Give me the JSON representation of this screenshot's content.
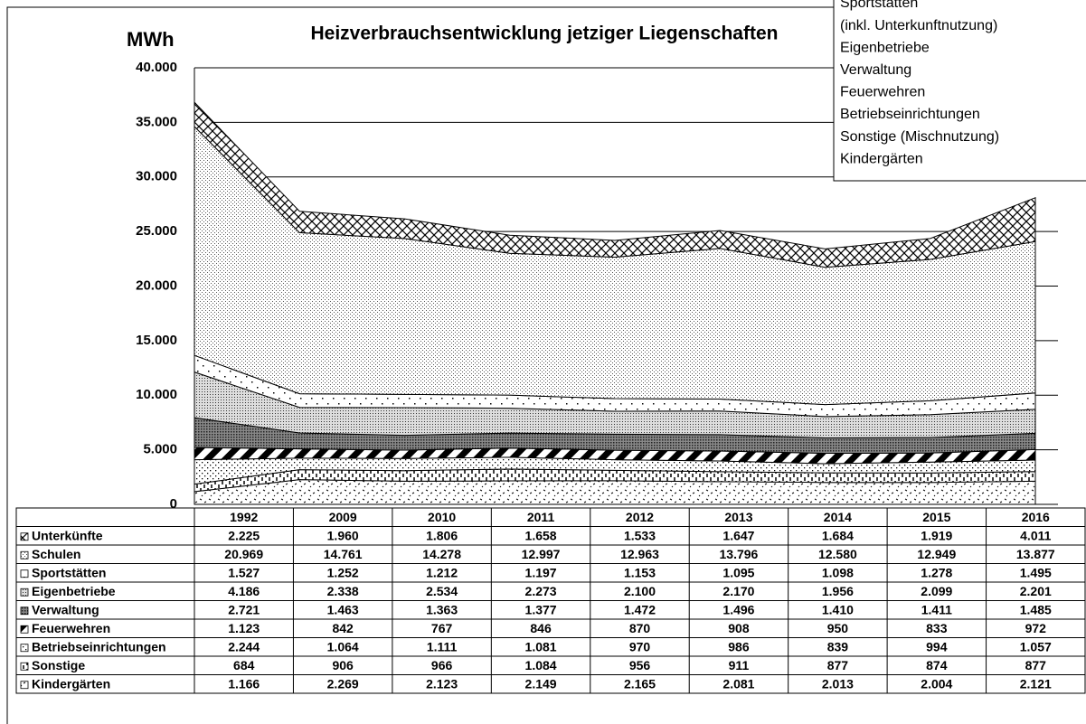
{
  "chart_data": {
    "type": "stacked_area",
    "title": "Heizverbrauchsentwicklung  jetziger Liegenschaften",
    "y_label": "MWh",
    "categories": [
      "1992",
      "2009",
      "2010",
      "2011",
      "2012",
      "2013",
      "2014",
      "2015",
      "2016"
    ],
    "ylim": [
      0,
      40000
    ],
    "yticks": [
      0,
      {
        "value": 5000,
        "label": "5.000"
      },
      {
        "value": 10000,
        "label": "10.000"
      },
      {
        "value": 15000,
        "label": "15.000"
      },
      {
        "value": 20000,
        "label": "20.000"
      },
      {
        "value": 25000,
        "label": "25.000"
      },
      {
        "value": 30000,
        "label": "30.000"
      },
      {
        "value": 35000,
        "label": "35.000"
      },
      {
        "value": 40000,
        "label": "40.000"
      }
    ],
    "grid": true,
    "legend_lines": [
      "Sportstätten",
      "(inkl. Unterkunftnutzung)",
      "Eigenbetriebe",
      "Verwaltung",
      "Feuerwehren",
      "Betriebseinrichtungen",
      "Sonstige (Mischnutzung)",
      "Kindergärten"
    ],
    "series": [
      {
        "name": "Unterkünfte",
        "values": [
          2225,
          1960,
          1806,
          1658,
          1533,
          1647,
          1684,
          1919,
          4011
        ],
        "value_labels": [
          "2.225",
          "1.960",
          "1.806",
          "1.658",
          "1.533",
          "1.647",
          "1.684",
          "1.919",
          "4.011"
        ]
      },
      {
        "name": "Schulen",
        "values": [
          20969,
          14761,
          14278,
          12997,
          12963,
          13796,
          12580,
          12949,
          13877
        ],
        "value_labels": [
          "20.969",
          "14.761",
          "14.278",
          "12.997",
          "12.963",
          "13.796",
          "12.580",
          "12.949",
          "13.877"
        ]
      },
      {
        "name": "Sportstätten",
        "values": [
          1527,
          1252,
          1212,
          1197,
          1153,
          1095,
          1098,
          1278,
          1495
        ],
        "value_labels": [
          "1.527",
          "1.252",
          "1.212",
          "1.197",
          "1.153",
          "1.095",
          "1.098",
          "1.278",
          "1.495"
        ]
      },
      {
        "name": "Eigenbetriebe",
        "values": [
          4186,
          2338,
          2534,
          2273,
          2100,
          2170,
          1956,
          2099,
          2201
        ],
        "value_labels": [
          "4.186",
          "2.338",
          "2.534",
          "2.273",
          "2.100",
          "2.170",
          "1.956",
          "2.099",
          "2.201"
        ]
      },
      {
        "name": "Verwaltung",
        "values": [
          2721,
          1463,
          1363,
          1377,
          1472,
          1496,
          1410,
          1411,
          1485
        ],
        "value_labels": [
          "2.721",
          "1.463",
          "1.363",
          "1.377",
          "1.472",
          "1.496",
          "1.410",
          "1.411",
          "1.485"
        ]
      },
      {
        "name": "Feuerwehren",
        "values": [
          1123,
          842,
          767,
          846,
          870,
          908,
          950,
          833,
          972
        ],
        "value_labels": [
          "1.123",
          "842",
          "767",
          "846",
          "870",
          "908",
          "950",
          "833",
          "972"
        ]
      },
      {
        "name": "Betriebseinrichtungen",
        "values": [
          2244,
          1064,
          1111,
          1081,
          970,
          986,
          839,
          994,
          1057
        ],
        "value_labels": [
          "2.244",
          "1.064",
          "1.111",
          "1.081",
          "970",
          "986",
          "839",
          "994",
          "1.057"
        ]
      },
      {
        "name": "Sonstige",
        "values": [
          684,
          906,
          966,
          1084,
          956,
          911,
          877,
          874,
          877
        ],
        "value_labels": [
          "684",
          "906",
          "966",
          "1.084",
          "956",
          "911",
          "877",
          "874",
          "877"
        ]
      },
      {
        "name": "Kindergärten",
        "values": [
          1166,
          2269,
          2123,
          2149,
          2165,
          2081,
          2013,
          2004,
          2121
        ],
        "value_labels": [
          "1.166",
          "2.269",
          "2.123",
          "2.149",
          "2.165",
          "2.081",
          "2.013",
          "2.004",
          "2.121"
        ]
      }
    ]
  }
}
